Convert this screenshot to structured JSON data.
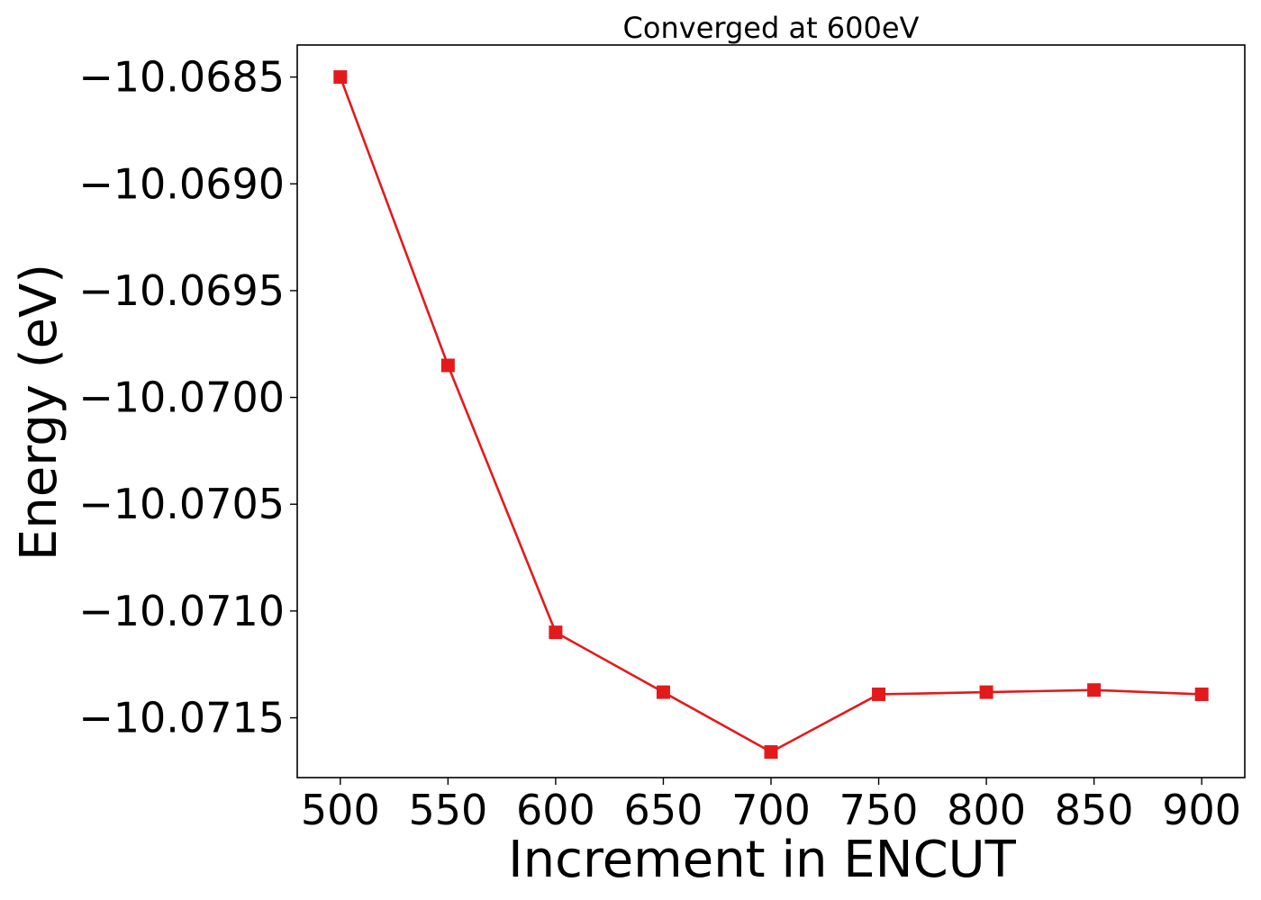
{
  "chart_data": {
    "type": "line",
    "title": "Converged at 600eV",
    "xlabel": "Increment in ENCUT",
    "ylabel": "Energy (eV)",
    "x": [
      500,
      550,
      600,
      650,
      700,
      750,
      800,
      850,
      900
    ],
    "series": [
      {
        "values": [
          -10.0685,
          -10.06985,
          -10.0711,
          -10.07138,
          -10.07166,
          -10.07139,
          -10.07138,
          -10.07137,
          -10.07139
        ],
        "color": "#e31a1c",
        "marker": "square"
      }
    ],
    "xticks": [
      500,
      550,
      600,
      650,
      700,
      750,
      800,
      850,
      900
    ],
    "xtick_labels": [
      "500",
      "550",
      "600",
      "650",
      "700",
      "750",
      "800",
      "850",
      "900"
    ],
    "yticks": [
      -10.0685,
      -10.069,
      -10.0695,
      -10.07,
      -10.0705,
      -10.071,
      -10.0715
    ],
    "ytick_labels": [
      "−10.0685",
      "−10.0690",
      "−10.0695",
      "−10.0700",
      "−10.0705",
      "−10.0710",
      "−10.0715"
    ],
    "xlim": [
      480,
      920
    ],
    "ylim": [
      -10.07178,
      -10.06835
    ],
    "grid": false,
    "legend": "none"
  }
}
